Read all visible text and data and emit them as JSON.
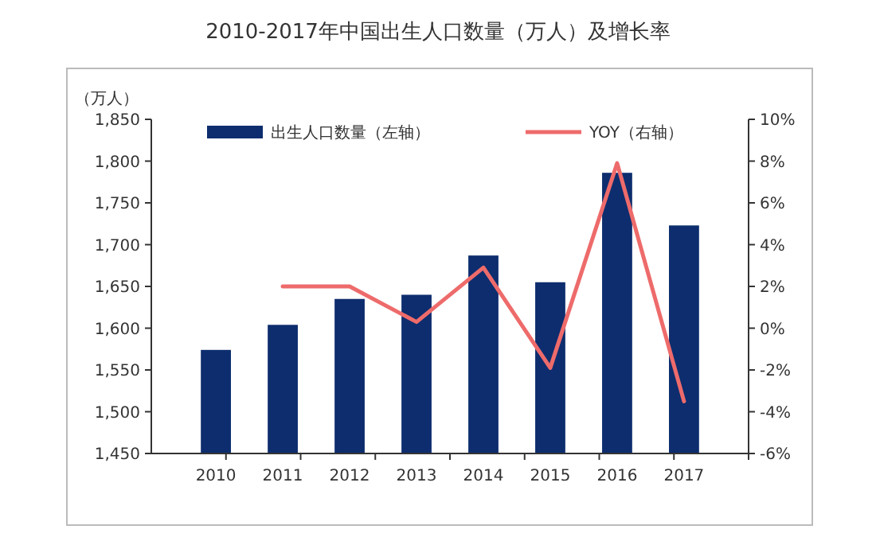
{
  "chart_data": {
    "type": "bar",
    "title": "2010-2017年中国出生人口数量（万人）及增长率",
    "ylabel": "（万人）",
    "categories": [
      "2010",
      "2011",
      "2012",
      "2013",
      "2014",
      "2015",
      "2016",
      "2017"
    ],
    "series": [
      {
        "name": "出生人口数量（左轴）",
        "color": "#0d2d6e",
        "values": [
          1574,
          1604,
          1635,
          1640,
          1687,
          1655,
          1786,
          1723
        ]
      },
      {
        "name": "YOY（右轴）",
        "type": "line",
        "axis": "y2",
        "color": "#ee6b6b",
        "values": [
          null,
          2.0,
          2.0,
          0.3,
          2.9,
          -1.9,
          7.9,
          -3.5
        ]
      }
    ],
    "ylim": [
      1450,
      1850
    ],
    "yticks": [
      {
        "value": 1450,
        "label": "1,450"
      },
      {
        "value": 1500,
        "label": "1,500"
      },
      {
        "value": 1550,
        "label": "1,550"
      },
      {
        "value": 1600,
        "label": "1,600"
      },
      {
        "value": 1650,
        "label": "1,650"
      },
      {
        "value": 1700,
        "label": "1,700"
      },
      {
        "value": 1750,
        "label": "1,750"
      },
      {
        "value": 1800,
        "label": "1,800"
      },
      {
        "value": 1850,
        "label": "1,850"
      }
    ],
    "y2lim": [
      -6,
      10
    ],
    "y2ticks": [
      {
        "value": -6,
        "label": "-6%"
      },
      {
        "value": -4,
        "label": "-4%"
      },
      {
        "value": -2,
        "label": "-2%"
      },
      {
        "value": 0,
        "label": "0%"
      },
      {
        "value": 2,
        "label": "2%"
      },
      {
        "value": 4,
        "label": "4%"
      },
      {
        "value": 6,
        "label": "6%"
      },
      {
        "value": 8,
        "label": "8%"
      },
      {
        "value": 10,
        "label": "10%"
      }
    ],
    "legend": "top",
    "grid": false
  }
}
